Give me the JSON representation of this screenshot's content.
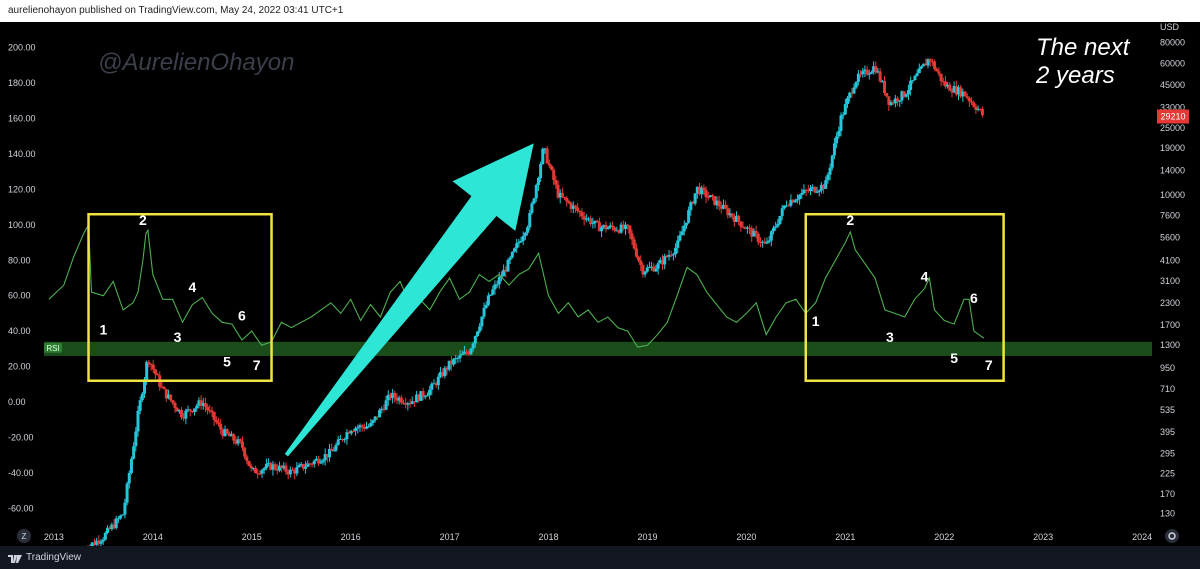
{
  "header": {
    "publish_text": "aurelienohayon published on TradingView.com, May 24, 2022 03:41 UTC+1"
  },
  "watermark": "@AurelienOhayon",
  "annotation": {
    "line1": "The next",
    "line2": "2 years"
  },
  "footer": {
    "brand": "TradingView",
    "z_button": "Z",
    "gear_icon": "gear-icon"
  },
  "colors": {
    "background": "#000000",
    "rsi_line": "#4caf50",
    "rsi_band": "#1b4d1b",
    "candle_up": "#26c6da",
    "candle_down": "#e53935",
    "box": "#f0e442",
    "arrow": "#2ee6d6",
    "price_tag": "#e53935"
  },
  "chart_data": {
    "type": "line",
    "x_axis": {
      "ticks": [
        "2013",
        "2014",
        "2015",
        "2016",
        "2017",
        "2018",
        "2019",
        "2020",
        "2021",
        "2022",
        "2023",
        "2024"
      ],
      "range": [
        2012.9,
        2024.1
      ]
    },
    "left_axis": {
      "label": "RSI",
      "ticks": [
        200.0,
        180.0,
        160.0,
        140.0,
        120.0,
        100.0,
        80.0,
        60.0,
        40.0,
        20.0,
        0.0,
        -20.0,
        -40.0,
        -60.0
      ],
      "ylim": [
        -70,
        210
      ]
    },
    "right_axis": {
      "label": "USD",
      "scale": "log",
      "ticks": [
        80000,
        60000,
        45000,
        33000,
        25000,
        19000,
        14000,
        10000,
        7600,
        5600,
        4100,
        3100,
        2300,
        1700,
        1300,
        950,
        710,
        535,
        395,
        295,
        225,
        170,
        130
      ],
      "last_price": "29210"
    },
    "rsi_band_label": "RSI",
    "rsi_band": [
      26,
      34
    ],
    "rsi_series": {
      "name": "RSI",
      "points": [
        [
          2012.95,
          58
        ],
        [
          2013.1,
          66
        ],
        [
          2013.2,
          82
        ],
        [
          2013.3,
          95
        ],
        [
          2013.35,
          100
        ],
        [
          2013.38,
          62
        ],
        [
          2013.5,
          60
        ],
        [
          2013.6,
          68
        ],
        [
          2013.7,
          52
        ],
        [
          2013.8,
          56
        ],
        [
          2013.85,
          62
        ],
        [
          2013.9,
          80
        ],
        [
          2013.93,
          95
        ],
        [
          2013.95,
          97
        ],
        [
          2014.0,
          72
        ],
        [
          2014.1,
          58
        ],
        [
          2014.2,
          58
        ],
        [
          2014.3,
          45
        ],
        [
          2014.4,
          55
        ],
        [
          2014.5,
          59
        ],
        [
          2014.6,
          50
        ],
        [
          2014.7,
          45
        ],
        [
          2014.8,
          44
        ],
        [
          2014.9,
          35
        ],
        [
          2015.0,
          40
        ],
        [
          2015.1,
          32
        ],
        [
          2015.2,
          34
        ],
        [
          2015.3,
          45
        ],
        [
          2015.4,
          42
        ],
        [
          2015.5,
          45
        ],
        [
          2015.6,
          48
        ],
        [
          2015.7,
          52
        ],
        [
          2015.8,
          56
        ],
        [
          2015.9,
          50
        ],
        [
          2016.0,
          58
        ],
        [
          2016.1,
          46
        ],
        [
          2016.2,
          55
        ],
        [
          2016.3,
          48
        ],
        [
          2016.4,
          62
        ],
        [
          2016.5,
          68
        ],
        [
          2016.6,
          55
        ],
        [
          2016.7,
          58
        ],
        [
          2016.8,
          52
        ],
        [
          2016.9,
          62
        ],
        [
          2017.0,
          70
        ],
        [
          2017.1,
          58
        ],
        [
          2017.2,
          62
        ],
        [
          2017.3,
          72
        ],
        [
          2017.4,
          68
        ],
        [
          2017.5,
          72
        ],
        [
          2017.6,
          66
        ],
        [
          2017.7,
          72
        ],
        [
          2017.8,
          75
        ],
        [
          2017.9,
          84
        ],
        [
          2018.0,
          60
        ],
        [
          2018.1,
          50
        ],
        [
          2018.2,
          56
        ],
        [
          2018.3,
          48
        ],
        [
          2018.4,
          52
        ],
        [
          2018.5,
          45
        ],
        [
          2018.6,
          48
        ],
        [
          2018.7,
          42
        ],
        [
          2018.8,
          40
        ],
        [
          2018.9,
          31
        ],
        [
          2019.0,
          32
        ],
        [
          2019.1,
          38
        ],
        [
          2019.2,
          45
        ],
        [
          2019.3,
          60
        ],
        [
          2019.4,
          76
        ],
        [
          2019.5,
          72
        ],
        [
          2019.6,
          62
        ],
        [
          2019.7,
          55
        ],
        [
          2019.8,
          48
        ],
        [
          2019.9,
          45
        ],
        [
          2020.0,
          50
        ],
        [
          2020.1,
          56
        ],
        [
          2020.2,
          38
        ],
        [
          2020.3,
          48
        ],
        [
          2020.4,
          56
        ],
        [
          2020.5,
          58
        ],
        [
          2020.6,
          50
        ],
        [
          2020.7,
          56
        ],
        [
          2020.8,
          70
        ],
        [
          2020.9,
          80
        ],
        [
          2021.0,
          90
        ],
        [
          2021.05,
          96
        ],
        [
          2021.1,
          86
        ],
        [
          2021.2,
          78
        ],
        [
          2021.3,
          70
        ],
        [
          2021.4,
          52
        ],
        [
          2021.5,
          50
        ],
        [
          2021.6,
          48
        ],
        [
          2021.7,
          58
        ],
        [
          2021.8,
          64
        ],
        [
          2021.85,
          70
        ],
        [
          2021.9,
          52
        ],
        [
          2022.0,
          46
        ],
        [
          2022.1,
          44
        ],
        [
          2022.2,
          58
        ],
        [
          2022.25,
          58
        ],
        [
          2022.3,
          40
        ],
        [
          2022.4,
          36
        ]
      ]
    },
    "price_series": {
      "name": "BTCUSD",
      "points": [
        [
          2013.3,
          80
        ],
        [
          2013.5,
          95
        ],
        [
          2013.7,
          130
        ],
        [
          2013.85,
          500
        ],
        [
          2013.95,
          1100
        ],
        [
          2014.1,
          700
        ],
        [
          2014.3,
          500
        ],
        [
          2014.5,
          600
        ],
        [
          2014.7,
          400
        ],
        [
          2014.9,
          330
        ],
        [
          2015.0,
          230
        ],
        [
          2015.2,
          250
        ],
        [
          2015.4,
          230
        ],
        [
          2015.6,
          260
        ],
        [
          2015.8,
          300
        ],
        [
          2016.0,
          420
        ],
        [
          2016.2,
          430
        ],
        [
          2016.4,
          650
        ],
        [
          2016.6,
          600
        ],
        [
          2016.8,
          700
        ],
        [
          2017.0,
          1000
        ],
        [
          2017.2,
          1200
        ],
        [
          2017.4,
          2500
        ],
        [
          2017.6,
          4000
        ],
        [
          2017.8,
          7000
        ],
        [
          2017.95,
          19000
        ],
        [
          2018.1,
          10000
        ],
        [
          2018.3,
          8000
        ],
        [
          2018.5,
          6500
        ],
        [
          2018.8,
          6300
        ],
        [
          2018.95,
          3600
        ],
        [
          2019.1,
          3800
        ],
        [
          2019.3,
          5000
        ],
        [
          2019.5,
          11000
        ],
        [
          2019.7,
          9000
        ],
        [
          2019.9,
          7200
        ],
        [
          2020.2,
          5000
        ],
        [
          2020.4,
          9000
        ],
        [
          2020.6,
          10500
        ],
        [
          2020.8,
          11500
        ],
        [
          2020.95,
          28000
        ],
        [
          2021.1,
          48000
        ],
        [
          2021.3,
          58000
        ],
        [
          2021.45,
          35000
        ],
        [
          2021.6,
          40000
        ],
        [
          2021.85,
          65000
        ],
        [
          2022.0,
          45000
        ],
        [
          2022.2,
          40000
        ],
        [
          2022.35,
          32000
        ],
        [
          2022.4,
          29210
        ]
      ]
    },
    "boxes": [
      {
        "name": "box-2014",
        "x": [
          2013.35,
          2015.2
        ],
        "y": [
          12,
          106
        ]
      },
      {
        "name": "box-2021",
        "x": [
          2020.6,
          2022.6
        ],
        "y": [
          12,
          106
        ]
      }
    ],
    "numbered_points_left": [
      {
        "label": "1",
        "x": 2013.5,
        "y": 38
      },
      {
        "label": "2",
        "x": 2013.9,
        "y": 100
      },
      {
        "label": "3",
        "x": 2014.25,
        "y": 34
      },
      {
        "label": "4",
        "x": 2014.4,
        "y": 62
      },
      {
        "label": "5",
        "x": 2014.75,
        "y": 20
      },
      {
        "label": "6",
        "x": 2014.9,
        "y": 46
      },
      {
        "label": "7",
        "x": 2015.05,
        "y": 18
      }
    ],
    "numbered_points_right": [
      {
        "label": "1",
        "x": 2020.7,
        "y": 43
      },
      {
        "label": "2",
        "x": 2021.05,
        "y": 100
      },
      {
        "label": "3",
        "x": 2021.45,
        "y": 34
      },
      {
        "label": "4",
        "x": 2021.8,
        "y": 68
      },
      {
        "label": "5",
        "x": 2022.1,
        "y": 22
      },
      {
        "label": "6",
        "x": 2022.3,
        "y": 56
      },
      {
        "label": "7",
        "x": 2022.45,
        "y": 18
      }
    ],
    "arrow": {
      "from": [
        2015.35,
        -30
      ],
      "to": [
        2017.85,
        146
      ]
    }
  }
}
